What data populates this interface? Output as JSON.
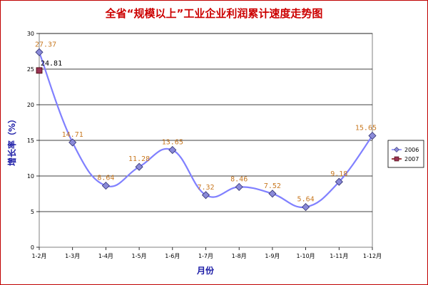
{
  "chart_data": {
    "type": "line",
    "title": "全省“规模以上”工业企业利润累计速度走势图",
    "xlabel": "月份",
    "ylabel": "增长率（%）",
    "categories": [
      "1-2月",
      "1-3月",
      "1-4月",
      "1-5月",
      "1-6月",
      "1-7月",
      "1-8月",
      "1-9月",
      "1-10月",
      "1-11月",
      "1-12月"
    ],
    "ylim": [
      0,
      30
    ],
    "yticks": [
      0,
      5,
      10,
      15,
      20,
      25,
      30
    ],
    "grid": true,
    "legend_position": "right",
    "series": [
      {
        "name": "2006",
        "values": [
          27.37,
          14.71,
          8.64,
          11.28,
          13.65,
          7.32,
          8.46,
          7.52,
          5.64,
          9.18,
          15.65
        ],
        "labels": [
          "27.37",
          "14.71",
          "8.64",
          "11.28",
          "13.65",
          "7.32",
          "8.46",
          "7.52",
          "5.64",
          "9.18",
          "15.65"
        ],
        "line_color": "#8080ff",
        "marker_color": "#8a8ad8",
        "marker": "diamond",
        "label_color": "#c87820"
      },
      {
        "name": "2007",
        "values": [
          24.81,
          null,
          null,
          null,
          null,
          null,
          null,
          null,
          null,
          null,
          null
        ],
        "labels": [
          "24.81"
        ],
        "line_color": "#800000",
        "marker_color": "#993355",
        "marker": "square",
        "label_color": "#000000"
      }
    ]
  }
}
